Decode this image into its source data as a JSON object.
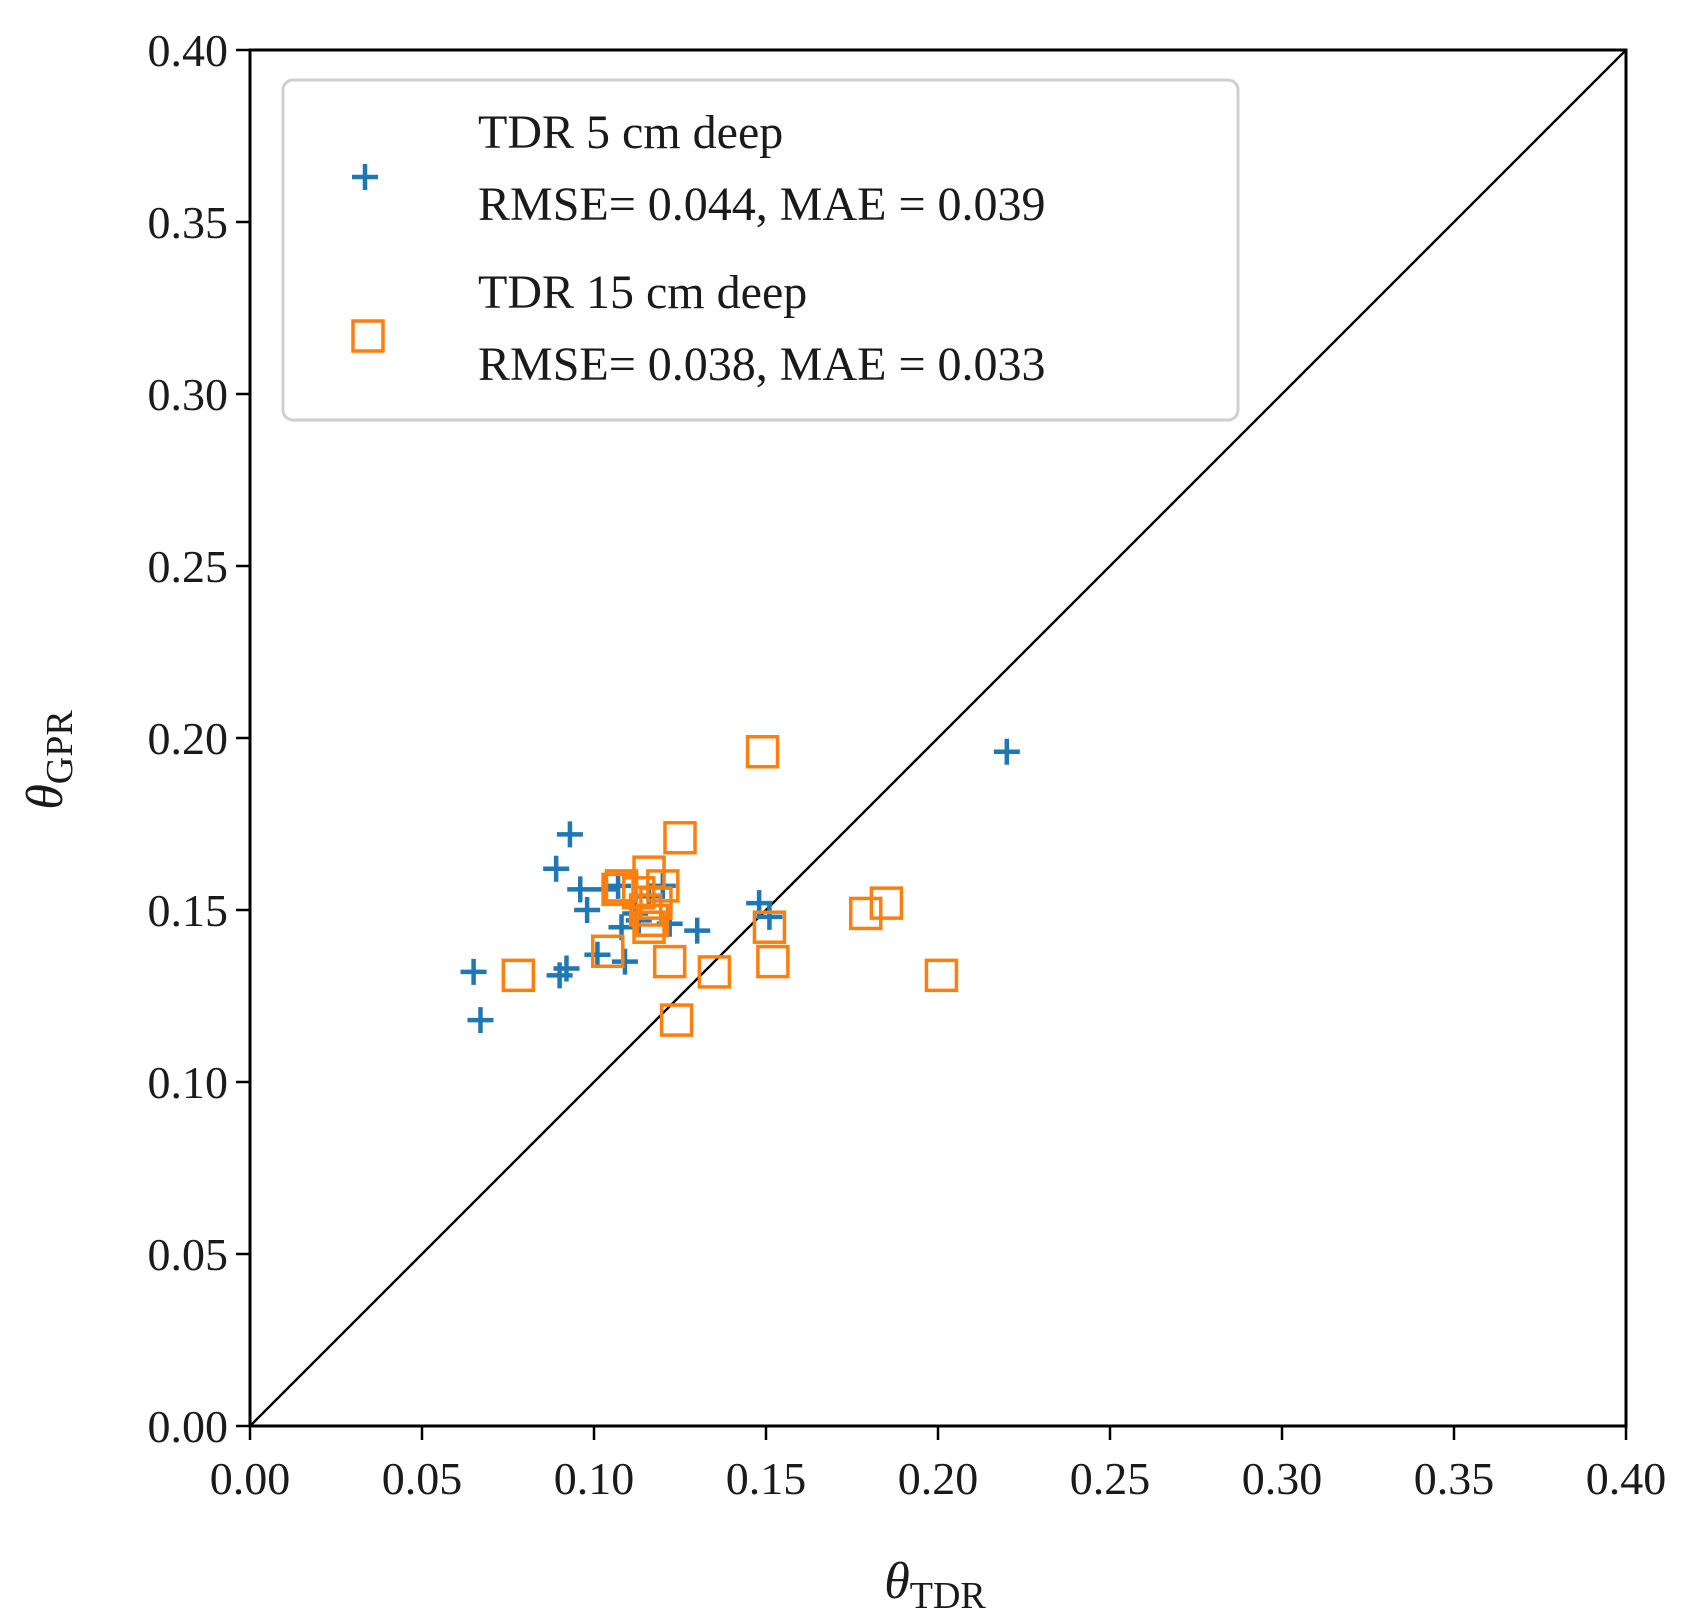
{
  "chart_data": {
    "type": "scatter",
    "title": "",
    "xlabel": {
      "symbol": "θ",
      "sub": "TDR"
    },
    "ylabel": {
      "symbol": "θ",
      "sub": "GPR"
    },
    "xlim": [
      0.0,
      0.4
    ],
    "ylim": [
      0.0,
      0.4
    ],
    "xticks": [
      "0.00",
      "0.05",
      "0.10",
      "0.15",
      "0.20",
      "0.25",
      "0.30",
      "0.35",
      "0.40"
    ],
    "yticks": [
      "0.00",
      "0.05",
      "0.10",
      "0.15",
      "0.20",
      "0.25",
      "0.30",
      "0.35",
      "0.40"
    ],
    "reference_line": {
      "type": "y=x"
    },
    "legend_position": "upper-left",
    "series": [
      {
        "name": "TDR 5 cm deep",
        "stats": "RMSE= 0.044, MAE = 0.039",
        "marker": "plus",
        "color": "#1f77b4",
        "points": [
          [
            0.065,
            0.132
          ],
          [
            0.067,
            0.118
          ],
          [
            0.089,
            0.162
          ],
          [
            0.09,
            0.131
          ],
          [
            0.092,
            0.133
          ],
          [
            0.093,
            0.172
          ],
          [
            0.096,
            0.156
          ],
          [
            0.098,
            0.15
          ],
          [
            0.101,
            0.137
          ],
          [
            0.103,
            0.156
          ],
          [
            0.107,
            0.157
          ],
          [
            0.108,
            0.145
          ],
          [
            0.109,
            0.135
          ],
          [
            0.112,
            0.149
          ],
          [
            0.113,
            0.147
          ],
          [
            0.116,
            0.154
          ],
          [
            0.12,
            0.157
          ],
          [
            0.122,
            0.146
          ],
          [
            0.13,
            0.144
          ],
          [
            0.148,
            0.152
          ],
          [
            0.151,
            0.148
          ],
          [
            0.22,
            0.196
          ]
        ]
      },
      {
        "name": "TDR 15 cm deep",
        "stats": "RMSE= 0.038, MAE = 0.033",
        "marker": "square",
        "color": "#ff7f0e",
        "points": [
          [
            0.078,
            0.131
          ],
          [
            0.104,
            0.138
          ],
          [
            0.107,
            0.156
          ],
          [
            0.108,
            0.157
          ],
          [
            0.113,
            0.155
          ],
          [
            0.115,
            0.15
          ],
          [
            0.116,
            0.145
          ],
          [
            0.116,
            0.161
          ],
          [
            0.117,
            0.147
          ],
          [
            0.118,
            0.152
          ],
          [
            0.12,
            0.157
          ],
          [
            0.122,
            0.135
          ],
          [
            0.124,
            0.118
          ],
          [
            0.125,
            0.171
          ],
          [
            0.135,
            0.132
          ],
          [
            0.149,
            0.196
          ],
          [
            0.151,
            0.145
          ],
          [
            0.152,
            0.135
          ],
          [
            0.179,
            0.149
          ],
          [
            0.185,
            0.152
          ],
          [
            0.201,
            0.131
          ]
        ]
      }
    ]
  }
}
